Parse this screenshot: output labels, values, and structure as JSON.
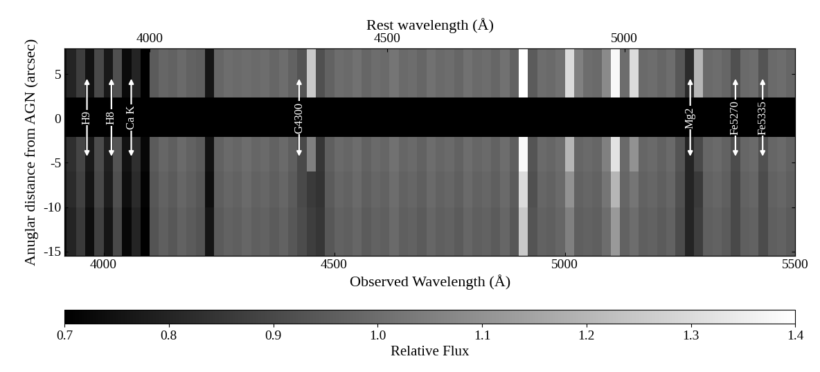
{
  "chart_data": {
    "type": "heatmap",
    "xlabel": "Observed Wavelength (Å)",
    "ylabel": "Anuglar distance from AGN (arcsec)",
    "x2label": "Rest wavelength (Å)",
    "xlim": [
      3915,
      5500
    ],
    "xticks": [
      4000,
      4500,
      5000,
      5500
    ],
    "x2lim": [
      3820,
      5360
    ],
    "x2ticks": [
      4000,
      4500,
      5000
    ],
    "ylim": [
      -15.5,
      7.9
    ],
    "yticks": [
      5,
      0,
      -5,
      -10,
      -15
    ],
    "colorbar_label": "Relative Flux",
    "colorbar_range": [
      0.7,
      1.4
    ],
    "colorbar_ticks": [
      0.7,
      0.8,
      0.9,
      1.0,
      1.1,
      1.2,
      1.3,
      1.4
    ],
    "arrow_span": [
      -4.5,
      4.7
    ],
    "annotations": [
      {
        "label": "H9",
        "x": 3964
      },
      {
        "label": "H8",
        "x": 4017
      },
      {
        "label": "Ca K",
        "x": 4060
      },
      {
        "label": "G4300",
        "x": 4424
      },
      {
        "label": "Mg2",
        "x": 5272
      },
      {
        "label": "Fe5270",
        "x": 5370
      },
      {
        "label": "Fe5335",
        "x": 5429
      }
    ],
    "x_edges": [
      3900,
      3920,
      3940,
      3960,
      3980,
      4000,
      4020,
      4040,
      4060,
      4080,
      4100,
      4120,
      4140,
      4160,
      4180,
      4200,
      4220,
      4240,
      4260,
      4280,
      4300,
      4320,
      4340,
      4360,
      4380,
      4400,
      4420,
      4440,
      4460,
      4480,
      4500,
      4520,
      4540,
      4560,
      4580,
      4600,
      4620,
      4640,
      4660,
      4680,
      4700,
      4720,
      4740,
      4760,
      4780,
      4800,
      4820,
      4840,
      4860,
      4880,
      4900,
      4920,
      4940,
      4960,
      4980,
      5000,
      5020,
      5040,
      5060,
      5080,
      5100,
      5120,
      5140,
      5160,
      5180,
      5200,
      5220,
      5240,
      5260,
      5280,
      5300,
      5320,
      5340,
      5360,
      5380,
      5400,
      5420,
      5440,
      5460,
      5480,
      5500,
      5520
    ],
    "y_edges": [
      -15.5,
      -10,
      -6,
      -2.1,
      2.4,
      7.9
    ],
    "cells": [
      [
        0.72,
        0.8,
        0.86,
        0.74,
        0.88,
        0.76,
        0.9,
        0.72,
        0.8,
        0.7,
        0.93,
        0.96,
        0.94,
        0.97,
        0.95,
        0.93,
        0.76,
        0.95,
        0.97,
        0.96,
        0.98,
        0.96,
        0.97,
        0.95,
        0.97,
        0.94,
        0.91,
        0.87,
        0.85,
        0.94,
        0.97,
        0.96,
        0.98,
        0.95,
        0.97,
        0.96,
        0.99,
        0.96,
        0.97,
        0.95,
        0.98,
        0.96,
        0.97,
        0.95,
        0.98,
        0.96,
        0.97,
        0.95,
        0.98,
        0.94,
        1.25,
        0.93,
        0.97,
        0.96,
        0.98,
        1.05,
        0.96,
        0.97,
        0.96,
        1.0,
        1.12,
        0.97,
        1.0,
        0.96,
        0.97,
        0.95,
        0.97,
        0.91,
        0.8,
        0.87,
        0.96,
        0.97,
        0.95,
        0.9,
        0.96,
        0.97,
        0.91,
        0.96,
        0.97,
        0.95,
        0.97
      ],
      [
        0.75,
        0.82,
        0.88,
        0.76,
        0.9,
        0.78,
        0.92,
        0.74,
        0.82,
        0.71,
        0.94,
        0.97,
        0.95,
        0.98,
        0.96,
        0.94,
        0.74,
        0.96,
        0.98,
        0.97,
        0.99,
        0.97,
        0.98,
        0.96,
        0.98,
        0.95,
        0.9,
        0.86,
        0.84,
        0.95,
        0.98,
        0.97,
        0.99,
        0.96,
        0.98,
        0.97,
        1.0,
        0.97,
        0.98,
        0.96,
        0.99,
        0.97,
        0.98,
        0.96,
        0.99,
        0.97,
        0.98,
        0.96,
        0.99,
        0.95,
        1.3,
        0.92,
        0.98,
        0.97,
        0.99,
        1.1,
        0.97,
        0.98,
        0.97,
        1.02,
        1.2,
        0.98,
        1.02,
        0.97,
        0.98,
        0.96,
        0.98,
        0.92,
        0.8,
        0.86,
        0.97,
        0.98,
        0.96,
        0.9,
        0.97,
        0.98,
        0.91,
        0.97,
        0.98,
        0.96,
        0.98
      ],
      [
        0.76,
        0.83,
        0.89,
        0.77,
        0.91,
        0.79,
        0.93,
        0.75,
        0.83,
        0.72,
        0.95,
        0.98,
        0.96,
        0.99,
        0.97,
        0.95,
        0.75,
        0.97,
        0.99,
        0.98,
        1.0,
        0.98,
        0.99,
        0.97,
        0.99,
        0.96,
        0.9,
        1.05,
        0.85,
        0.96,
        0.99,
        0.98,
        1.0,
        0.97,
        0.99,
        0.98,
        1.01,
        0.98,
        0.99,
        0.97,
        1.0,
        0.98,
        0.99,
        0.97,
        1.0,
        0.98,
        0.99,
        0.97,
        1.0,
        0.96,
        1.38,
        0.93,
        0.99,
        0.98,
        1.0,
        1.2,
        0.98,
        0.99,
        0.98,
        1.05,
        1.32,
        0.99,
        1.1,
        0.98,
        0.99,
        0.97,
        0.99,
        0.93,
        0.8,
        0.9,
        0.98,
        0.99,
        0.97,
        0.91,
        0.98,
        0.99,
        0.92,
        0.98,
        0.99,
        0.97,
        0.99
      ],
      [
        null,
        null,
        null,
        null,
        null,
        null,
        null,
        null,
        null,
        null,
        null,
        null,
        null,
        null,
        null,
        null,
        null,
        null,
        null,
        null,
        null,
        null,
        null,
        null,
        null,
        null,
        null,
        null,
        null,
        null,
        null,
        null,
        null,
        null,
        null,
        null,
        null,
        null,
        null,
        null,
        null,
        null,
        null,
        null,
        null,
        null,
        null,
        null,
        null,
        null,
        null,
        null,
        null,
        null,
        null,
        null,
        null,
        null,
        null,
        null,
        null,
        null,
        null,
        null,
        null,
        null,
        null,
        null,
        null,
        null,
        null,
        null,
        null,
        null,
        null,
        null,
        null,
        null,
        null,
        null,
        null
      ],
      [
        0.74,
        0.8,
        0.87,
        0.75,
        0.9,
        0.77,
        0.92,
        0.73,
        0.8,
        0.7,
        0.95,
        0.98,
        0.97,
        0.99,
        0.97,
        0.96,
        0.76,
        0.98,
        1.0,
        0.99,
        1.0,
        0.99,
        1.0,
        0.98,
        1.0,
        0.97,
        0.93,
        1.25,
        0.92,
        0.97,
        1.0,
        0.99,
        1.01,
        0.98,
        1.0,
        0.99,
        1.02,
        0.99,
        1.0,
        0.98,
        1.01,
        0.99,
        1.0,
        0.98,
        1.01,
        0.99,
        1.0,
        0.98,
        1.01,
        0.97,
        1.4,
        0.95,
        1.0,
        0.99,
        1.01,
        1.3,
        1.05,
        1.0,
        0.99,
        1.08,
        1.38,
        1.0,
        1.3,
        0.99,
        1.0,
        0.98,
        1.0,
        0.94,
        0.82,
        1.2,
        0.99,
        1.0,
        0.98,
        0.92,
        0.99,
        1.0,
        0.93,
        0.99,
        1.0,
        0.98,
        1.0
      ]
    ]
  }
}
